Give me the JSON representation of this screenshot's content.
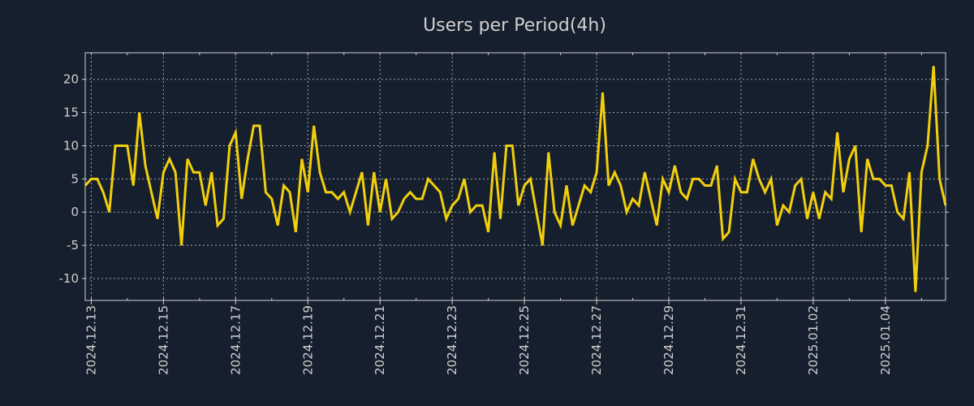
{
  "chart_data": {
    "type": "line",
    "title": "Users per Period(4h)",
    "xlabel": "",
    "ylabel": "",
    "period": "4h",
    "start": "2024-12-12 20:00",
    "ylim": [
      -13.3,
      24
    ],
    "yticks": [
      -10,
      -5,
      0,
      5,
      10,
      15,
      20
    ],
    "xtick_labels": [
      "2024.12.13",
      "2024.12.15",
      "2024.12.17",
      "2024.12.19",
      "2024.12.21",
      "2024.12.23",
      "2024.12.25",
      "2024.12.27",
      "2024.12.29",
      "2024.12.31",
      "2025.01.02",
      "2025.01.04"
    ],
    "grid": true,
    "series": [
      {
        "name": "Users",
        "color": "#f2cf0c",
        "values": [
          4,
          5,
          5,
          3,
          0,
          10,
          10,
          10,
          4,
          15,
          7,
          3,
          -1,
          6,
          8,
          6,
          -5,
          8,
          6,
          6,
          1,
          6,
          -2,
          -1,
          10,
          12,
          2,
          8,
          13,
          13,
          3,
          2,
          -2,
          4,
          3,
          -3,
          8,
          3,
          13,
          6,
          3,
          3,
          2,
          3,
          0,
          3,
          6,
          -2,
          6,
          0,
          5,
          -1,
          0,
          2,
          3,
          2,
          2,
          5,
          4,
          3,
          -1,
          1,
          2,
          5,
          0,
          1,
          1,
          -3,
          9,
          -1,
          10,
          10,
          1,
          4,
          5,
          0,
          -5,
          9,
          0,
          -2,
          4,
          -2,
          1,
          4,
          3,
          6,
          18,
          4,
          6,
          4,
          0,
          2,
          1,
          6,
          2,
          -2,
          5,
          3,
          7,
          3,
          2,
          5,
          5,
          4,
          4,
          7,
          -4,
          -3,
          5,
          3,
          3,
          8,
          5,
          3,
          5,
          -2,
          1,
          0,
          4,
          5,
          -1,
          3,
          -1,
          3,
          2,
          12,
          3,
          8,
          10,
          -3,
          8,
          5,
          5,
          4,
          4,
          0,
          -1,
          6,
          -12,
          6,
          10,
          22,
          5,
          1
        ]
      }
    ],
    "colors": {
      "background": "#161f2d",
      "text": "#d0d0d0",
      "grid": "#c8c8c8"
    }
  }
}
